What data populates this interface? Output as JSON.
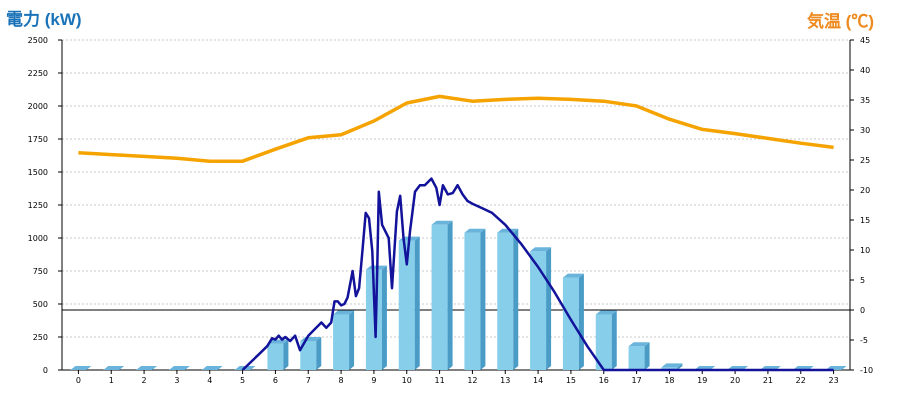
{
  "chart_data": {
    "type": "bar",
    "ylabel_left": "電力 (kW)",
    "ylabel_right": "気温 (℃)",
    "categories": [
      "0",
      "1",
      "2",
      "3",
      "4",
      "5",
      "6",
      "7",
      "8",
      "9",
      "10",
      "11",
      "12",
      "13",
      "14",
      "15",
      "16",
      "17",
      "18",
      "19",
      "20",
      "21",
      "22",
      "23"
    ],
    "left_axis": {
      "min": 0,
      "max": 2500,
      "ticks": [
        "0",
        "250",
        "500",
        "750",
        "1000",
        "1250",
        "1500",
        "1750",
        "2000",
        "2250",
        "2500"
      ]
    },
    "right_axis": {
      "min": -10,
      "max": 45,
      "ticks": [
        "-10",
        "-5",
        "0",
        "5",
        "10",
        "15",
        "20",
        "25",
        "30",
        "35",
        "40",
        "45"
      ]
    },
    "grid": "horizontal dashed",
    "colors": {
      "bars": "#87ceeb",
      "bar_side": "#4a9cc7",
      "power_line": "#12129a",
      "temp_line": "#f5a300"
    },
    "series": [
      {
        "type": "bar",
        "axis": "left",
        "values": [
          0,
          0,
          0,
          0,
          0,
          0,
          200,
          220,
          420,
          760,
          980,
          1100,
          1040,
          1040,
          900,
          700,
          420,
          180,
          20,
          0,
          0,
          0,
          0,
          0
        ]
      },
      {
        "type": "line",
        "axis": "left",
        "x": [
          5,
          5.5,
          5.75,
          5.9,
          6,
          6.1,
          6.2,
          6.3,
          6.45,
          6.6,
          6.75,
          7,
          7.2,
          7.4,
          7.55,
          7.7,
          7.8,
          7.9,
          8,
          8.1,
          8.2,
          8.35,
          8.45,
          8.55,
          8.65,
          8.75,
          8.85,
          8.95,
          9.05,
          9.1,
          9.15,
          9.25,
          9.35,
          9.45,
          9.55,
          9.7,
          9.8,
          9.9,
          10,
          10.1,
          10.25,
          10.4,
          10.55,
          10.75,
          10.9,
          11,
          11.1,
          11.25,
          11.4,
          11.55,
          11.7,
          11.85,
          12,
          12.3,
          12.6,
          13,
          13.5,
          14,
          14.5,
          15,
          15.5,
          16,
          16.5,
          17,
          17.3,
          17.6,
          18,
          18.5,
          19,
          20,
          21,
          22,
          23
        ],
        "values": [
          0,
          120,
          180,
          240,
          230,
          260,
          230,
          250,
          220,
          260,
          150,
          260,
          310,
          360,
          320,
          360,
          520,
          520,
          490,
          500,
          550,
          750,
          560,
          620,
          900,
          1190,
          1150,
          900,
          250,
          750,
          1350,
          1100,
          1050,
          1000,
          620,
          1200,
          1320,
          1000,
          800,
          1050,
          1350,
          1400,
          1400,
          1450,
          1380,
          1250,
          1400,
          1330,
          1340,
          1400,
          1330,
          1280,
          1260,
          1225,
          1190,
          1100,
          950,
          780,
          590,
          380,
          180,
          0,
          0,
          0,
          0,
          0,
          0,
          0,
          0,
          0,
          0,
          0,
          0
        ]
      },
      {
        "type": "line",
        "axis": "right",
        "x": [
          0,
          1,
          2,
          3,
          4,
          5,
          6,
          7,
          8,
          9,
          10,
          11,
          12,
          13,
          14,
          15,
          16,
          17,
          18,
          19,
          20,
          21,
          22,
          23
        ],
        "values": [
          26.2,
          25.9,
          25.6,
          25.3,
          24.8,
          24.8,
          26.8,
          28.7,
          29.2,
          31.5,
          34.5,
          35.6,
          34.8,
          35.1,
          35.3,
          35.1,
          34.8,
          34,
          31.8,
          30.1,
          29.4,
          28.6,
          27.8,
          27.1
        ]
      }
    ]
  }
}
